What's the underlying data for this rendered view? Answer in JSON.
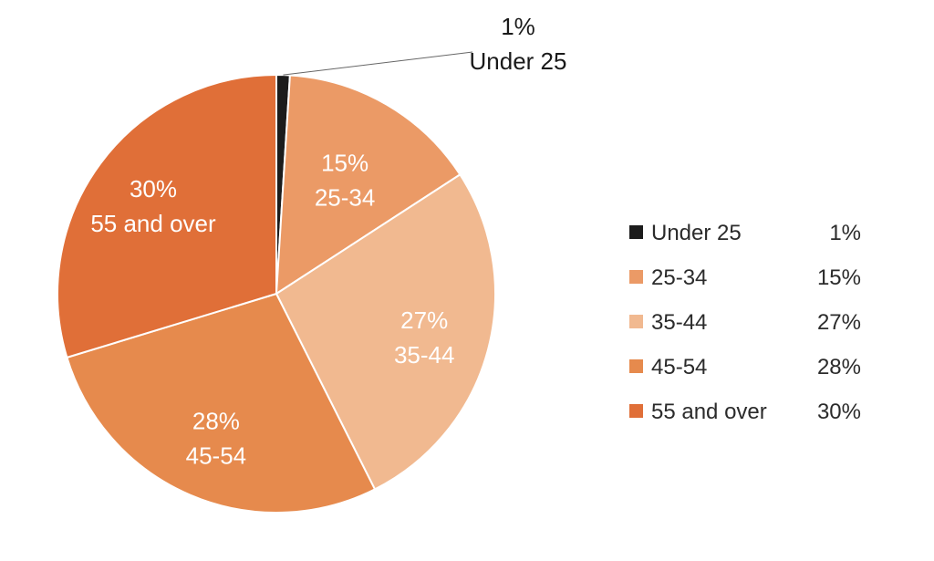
{
  "chart_data": {
    "type": "pie",
    "title": "",
    "start_angle_deg": 0,
    "direction": "clockwise",
    "slices": [
      {
        "label": "Under 25",
        "value": 1,
        "value_label": "1%",
        "color": "#1c1c1c",
        "label_position": "outside"
      },
      {
        "label": "25-34",
        "value": 15,
        "value_label": "15%",
        "color": "#eb9a66",
        "label_position": "inside"
      },
      {
        "label": "35-44",
        "value": 27,
        "value_label": "27%",
        "color": "#f1b990",
        "label_position": "inside"
      },
      {
        "label": "45-54",
        "value": 28,
        "value_label": "28%",
        "color": "#e68a4d",
        "label_position": "inside"
      },
      {
        "label": "55 and over",
        "value": 30,
        "value_label": "30%",
        "color": "#e06f38",
        "label_position": "inside"
      }
    ],
    "legend": {
      "position": "right",
      "entries": [
        {
          "label": "Under 25",
          "value_label": "1%"
        },
        {
          "label": "25-34",
          "value_label": "15%"
        },
        {
          "label": "35-44",
          "value_label": "27%"
        },
        {
          "label": "45-54",
          "value_label": "28%"
        },
        {
          "label": "55 and over",
          "value_label": "30%"
        }
      ]
    }
  }
}
